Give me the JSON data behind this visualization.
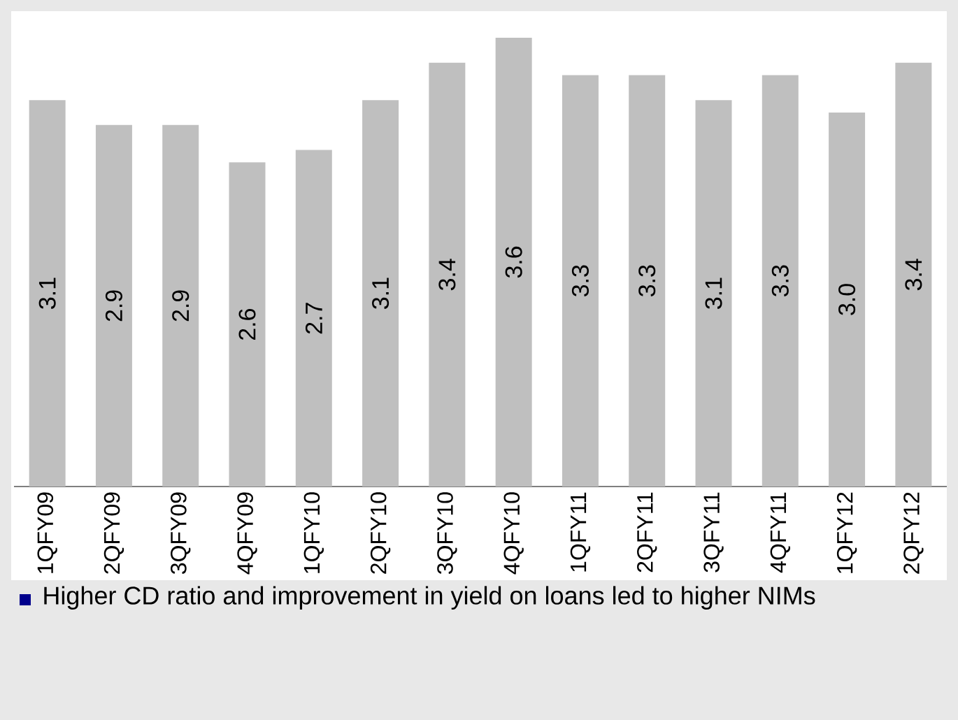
{
  "chart_data": {
    "type": "bar",
    "categories": [
      "1QFY09",
      "2QFY09",
      "3QFY09",
      "4QFY09",
      "1QFY10",
      "2QFY10",
      "3QFY10",
      "4QFY10",
      "1QFY11",
      "2QFY11",
      "3QFY11",
      "4QFY11",
      "1QFY12",
      "2QFY12"
    ],
    "values": [
      3.1,
      2.9,
      2.9,
      2.6,
      2.7,
      3.1,
      3.4,
      3.6,
      3.3,
      3.3,
      3.1,
      3.3,
      3.0,
      3.4
    ],
    "value_labels": [
      "3.1",
      "2.9",
      "2.9",
      "2.6",
      "2.7",
      "3.1",
      "3.4",
      "3.6",
      "3.3",
      "3.3",
      "3.1",
      "3.3",
      "3.0",
      "3.4"
    ],
    "color": "#bfbfbf",
    "tick_labels": "x",
    "annotations": [
      "Higher CD ratio and improvement in yield on loans led to higher NIMs"
    ]
  }
}
